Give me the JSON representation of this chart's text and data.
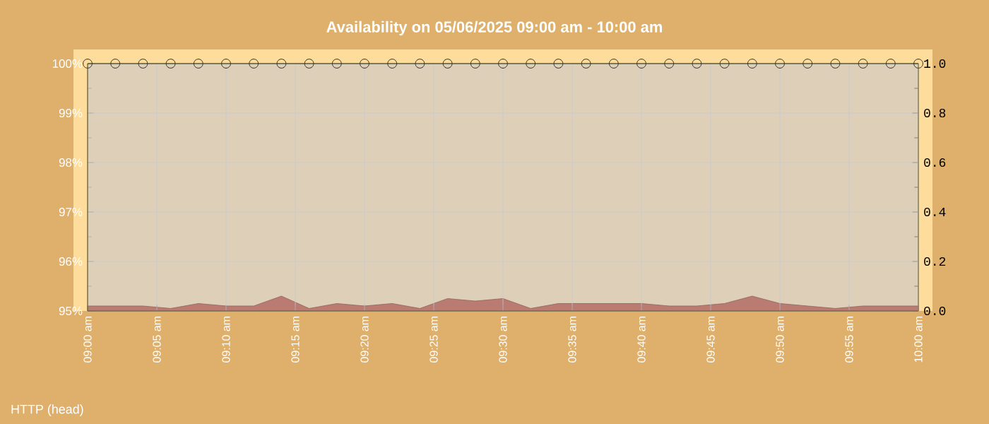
{
  "chart_data": {
    "type": "line",
    "title": "Availability on 05/06/2025 09:00 am - 10:00 am",
    "annotations": [
      "HTTP (head)"
    ],
    "x": [
      "2025-05-06T09:00",
      "2025-05-06T09:02",
      "2025-05-06T09:04",
      "2025-05-06T09:06",
      "2025-05-06T09:08",
      "2025-05-06T09:10",
      "2025-05-06T09:12",
      "2025-05-06T09:14",
      "2025-05-06T09:16",
      "2025-05-06T09:18",
      "2025-05-06T09:20",
      "2025-05-06T09:22",
      "2025-05-06T09:24",
      "2025-05-06T09:26",
      "2025-05-06T09:28",
      "2025-05-06T09:30",
      "2025-05-06T09:32",
      "2025-05-06T09:34",
      "2025-05-06T09:36",
      "2025-05-06T09:38",
      "2025-05-06T09:40",
      "2025-05-06T09:42",
      "2025-05-06T09:44",
      "2025-05-06T09:46",
      "2025-05-06T09:48",
      "2025-05-06T09:50",
      "2025-05-06T09:52",
      "2025-05-06T09:54",
      "2025-05-06T09:56",
      "2025-05-06T09:58",
      "2025-05-06T10:00"
    ],
    "series": [
      {
        "type": "area",
        "axis": "y2",
        "color": "#b97b72",
        "values": [
          0.02,
          0.02,
          0.02,
          0.01,
          0.03,
          0.02,
          0.02,
          0.06,
          0.01,
          0.03,
          0.02,
          0.03,
          0.01,
          0.05,
          0.04,
          0.05,
          0.01,
          0.03,
          0.03,
          0.03,
          0.03,
          0.02,
          0.02,
          0.03,
          0.06,
          0.03,
          0.02,
          0.01,
          0.02,
          0.02,
          0.02
        ]
      },
      {
        "color": "#000000",
        "marker": "circle",
        "values": [
          100,
          100,
          100,
          100,
          100,
          100,
          100,
          100,
          100,
          100,
          100,
          100,
          100,
          100,
          100,
          100,
          100,
          100,
          100,
          100,
          100,
          100,
          100,
          100,
          100,
          100,
          100,
          100,
          100,
          100,
          100
        ]
      }
    ],
    "xlim": [
      "2025-05-06T09:00",
      "2025-05-06T10:00"
    ],
    "xticks": [
      {
        "value": "2025-05-06T09:00",
        "label": "09:00 am"
      },
      {
        "value": "2025-05-06T09:05",
        "label": "09:05 am"
      },
      {
        "value": "2025-05-06T09:10",
        "label": "09:10 am"
      },
      {
        "value": "2025-05-06T09:15",
        "label": "09:15 am"
      },
      {
        "value": "2025-05-06T09:20",
        "label": "09:20 am"
      },
      {
        "value": "2025-05-06T09:25",
        "label": "09:25 am"
      },
      {
        "value": "2025-05-06T09:30",
        "label": "09:30 am"
      },
      {
        "value": "2025-05-06T09:35",
        "label": "09:35 am"
      },
      {
        "value": "2025-05-06T09:40",
        "label": "09:40 am"
      },
      {
        "value": "2025-05-06T09:45",
        "label": "09:45 am"
      },
      {
        "value": "2025-05-06T09:50",
        "label": "09:50 am"
      },
      {
        "value": "2025-05-06T09:55",
        "label": "09:55 am"
      },
      {
        "value": "2025-05-06T10:00",
        "label": "10:00 am"
      }
    ],
    "ylim": [
      95,
      100
    ],
    "yticks": [
      {
        "value": 95,
        "label": "95%"
      },
      {
        "value": 96,
        "label": "96%"
      },
      {
        "value": 97,
        "label": "97%"
      },
      {
        "value": 98,
        "label": "98%"
      },
      {
        "value": 99,
        "label": "99%"
      },
      {
        "value": 100,
        "label": "100%"
      }
    ],
    "y2lim": [
      0,
      1
    ],
    "y2ticks": [
      {
        "value": 0,
        "label": "0.0"
      },
      {
        "value": 0.2,
        "label": "0.2"
      },
      {
        "value": 0.4,
        "label": "0.4"
      },
      {
        "value": 0.6,
        "label": "0.6"
      },
      {
        "value": 0.8,
        "label": "0.8"
      },
      {
        "value": 1,
        "label": "1.0"
      }
    ],
    "grid": true
  }
}
